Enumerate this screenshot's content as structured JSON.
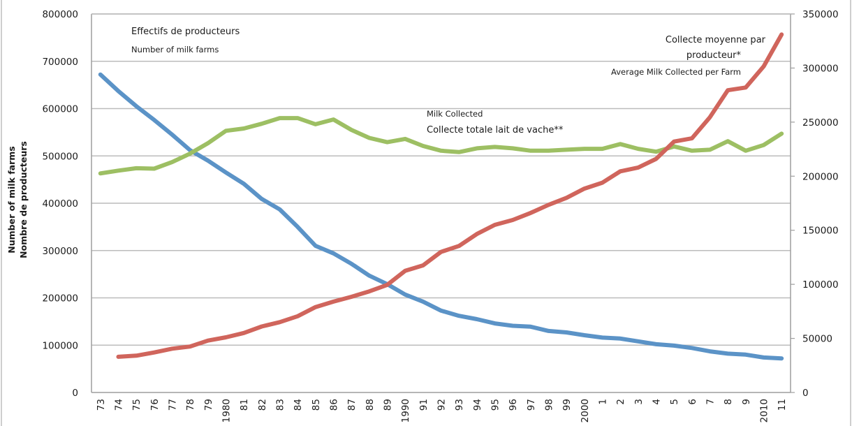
{
  "chart_data": {
    "type": "line",
    "title": "",
    "xlabel": "",
    "ylabel": [
      "Number of milk farms",
      "Nombre de producteurs"
    ],
    "ylim": [
      0,
      800000
    ],
    "y2lim": [
      0,
      350000
    ],
    "yticks": [
      "0",
      "100000",
      "200000",
      "300000",
      "400000",
      "500000",
      "600000",
      "700000",
      "800000"
    ],
    "y2ticks": [
      "0",
      "50000",
      "100000",
      "150000",
      "200000",
      "250000",
      "300000",
      "350000"
    ],
    "grid": true,
    "categories": [
      "73",
      "74",
      "75",
      "76",
      "77",
      "78",
      "79",
      "1980",
      "81",
      "82",
      "83",
      "84",
      "85",
      "86",
      "87",
      "88",
      "89",
      "1990",
      "91",
      "92",
      "93",
      "94",
      "95",
      "96",
      "97",
      "98",
      "99",
      "2000",
      "1",
      "2",
      "3",
      "4",
      "5",
      "6",
      "7",
      "8",
      "9",
      "2010",
      "11"
    ],
    "series": [
      {
        "name": "Effectifs de producteurs / Number of milk farms",
        "axis": "left",
        "color": "#5b93c7",
        "values": [
          672000,
          637000,
          605000,
          576000,
          545000,
          512000,
          490000,
          465000,
          441000,
          409000,
          387000,
          350000,
          310000,
          294000,
          272000,
          247000,
          229000,
          207000,
          192000,
          173000,
          162000,
          155000,
          146000,
          141000,
          139000,
          130000,
          127000,
          121000,
          116000,
          114000,
          108000,
          102000,
          99000,
          94000,
          87000,
          82000,
          80000,
          74000,
          72000
        ]
      },
      {
        "name": "Milk Collected / Collecte totale lait de vache**",
        "axis": "left",
        "color": "#9dbf63",
        "values": [
          463000,
          469000,
          474000,
          473000,
          487000,
          505000,
          527000,
          553000,
          558000,
          568000,
          580000,
          580000,
          567000,
          577000,
          555000,
          538000,
          529000,
          536000,
          521000,
          511000,
          508000,
          516000,
          519000,
          516000,
          511000,
          511000,
          513000,
          515000,
          515000,
          525000,
          515000,
          509000,
          520000,
          511000,
          513000,
          531000,
          511000,
          523000,
          547000
        ]
      },
      {
        "name": "Collecte moyenne par producteur* / Average Milk Collected per Farm",
        "axis": "right",
        "color": "#d0655c",
        "values": [
          null,
          33000,
          34000,
          37000,
          40500,
          42500,
          48000,
          51000,
          55000,
          61000,
          65000,
          70500,
          79000,
          84000,
          88500,
          93500,
          99500,
          112500,
          117500,
          130000,
          135500,
          146500,
          155000,
          159500,
          166000,
          173500,
          180000,
          188500,
          194000,
          204500,
          208000,
          216000,
          232000,
          235000,
          254500,
          279500,
          282000,
          301500,
          331000
        ]
      }
    ],
    "annotations": {
      "farms_fr": "Effectifs de producteurs",
      "farms_en": "Number of milk farms",
      "milk_en": "Milk Collected",
      "milk_fr": "Collecte totale lait de vache**",
      "avg_fr_line1": "Collecte moyenne par",
      "avg_fr_line2": "producteur*",
      "avg_en": "Average Milk Collected per Farm"
    }
  }
}
